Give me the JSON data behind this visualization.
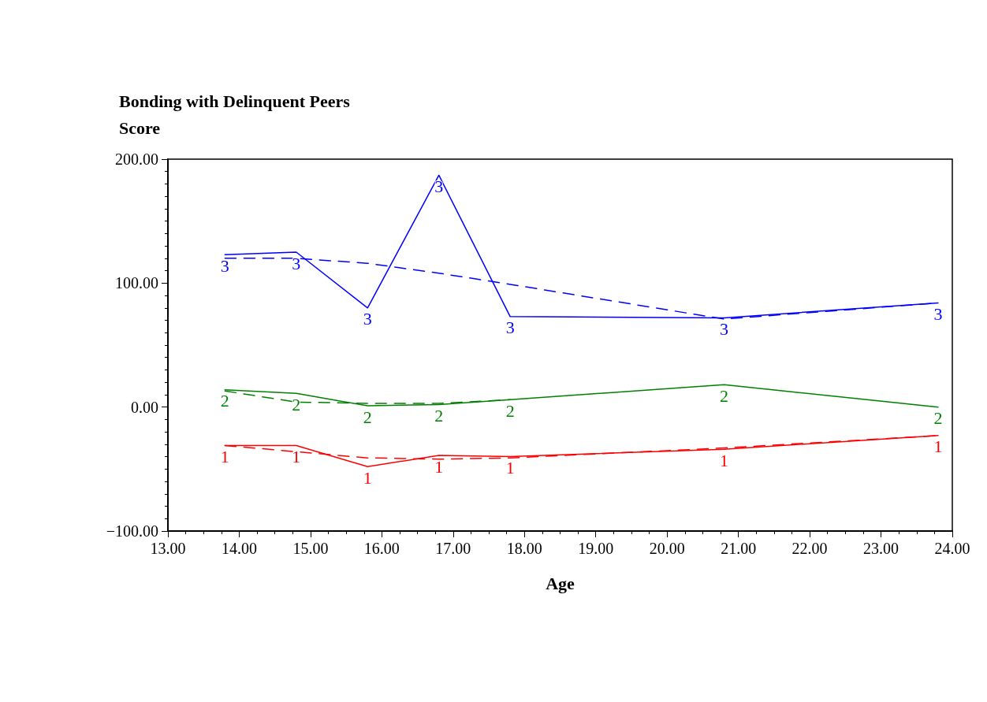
{
  "chart_data": {
    "type": "line",
    "ylabel": "Bonding with Delinquent Peers\nScore",
    "xlabel": "Age",
    "x": [
      13.8,
      14.8,
      15.8,
      16.8,
      17.8,
      20.8,
      23.8
    ],
    "series": [
      {
        "name": "1",
        "color": "#ff0000",
        "line_style": "solid",
        "values": [
          -31,
          -31,
          -48,
          -39,
          -40,
          -34,
          -23
        ]
      },
      {
        "color": "#ff0000",
        "line_style": "dashed",
        "values": [
          -31,
          -36,
          -41,
          -42,
          -41,
          -33,
          -23
        ]
      },
      {
        "name": "2",
        "color": "#008000",
        "line_style": "solid",
        "values": [
          14,
          11,
          1,
          2,
          6,
          18,
          0
        ]
      },
      {
        "color": "#008000",
        "line_style": "dashed",
        "x": [
          13.8,
          14.8,
          15.8,
          16.8,
          17.8
        ],
        "values": [
          13,
          4,
          3,
          3,
          6
        ]
      },
      {
        "name": "3",
        "color": "#0000ff",
        "line_style": "solid",
        "values": [
          123,
          125,
          80,
          187,
          73,
          72,
          84
        ]
      },
      {
        "color": "#0000ff",
        "line_style": "dashed",
        "values": [
          120,
          120,
          116,
          108,
          99,
          71,
          84
        ]
      }
    ],
    "xlim": [
      13,
      24
    ],
    "xticks": [
      {
        "value": 13,
        "label": "13.00"
      },
      {
        "value": 14,
        "label": "14.00"
      },
      {
        "value": 15,
        "label": "15.00"
      },
      {
        "value": 16,
        "label": "16.00"
      },
      {
        "value": 17,
        "label": "17.00"
      },
      {
        "value": 18,
        "label": "18.00"
      },
      {
        "value": 19,
        "label": "19.00"
      },
      {
        "value": 20,
        "label": "20.00"
      },
      {
        "value": 21,
        "label": "21.00"
      },
      {
        "value": 22,
        "label": "22.00"
      },
      {
        "value": 23,
        "label": "23.00"
      },
      {
        "value": 24,
        "label": "24.00"
      }
    ],
    "ylim": [
      -100,
      200
    ],
    "yticks": [
      {
        "value": -100,
        "label": "−100.00"
      },
      {
        "value": 0,
        "label": "0.00"
      },
      {
        "value": 100,
        "label": "100.00"
      },
      {
        "value": 200,
        "label": "200.00"
      }
    ],
    "grid": false,
    "legend": false,
    "marker": "none"
  }
}
